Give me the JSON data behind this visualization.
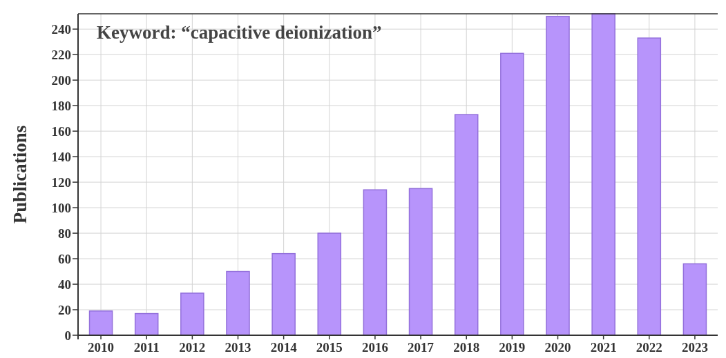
{
  "chart_data": {
    "type": "bar",
    "ylabel": "Publications",
    "annotations": [
      "Keyword: “capacitive deionization”"
    ],
    "categories": [
      "2010",
      "2011",
      "2012",
      "2013",
      "2014",
      "2015",
      "2016",
      "2017",
      "2018",
      "2019",
      "2020",
      "2021",
      "2022",
      "2023"
    ],
    "values": [
      19,
      17,
      33,
      50,
      64,
      80,
      114,
      115,
      173,
      221,
      250,
      252,
      233,
      56
    ],
    "color": "#b794fb",
    "ylim": [
      0,
      252
    ],
    "yticks": [
      0,
      20,
      40,
      60,
      80,
      100,
      120,
      140,
      160,
      180,
      200,
      220,
      240
    ],
    "grid": true
  }
}
